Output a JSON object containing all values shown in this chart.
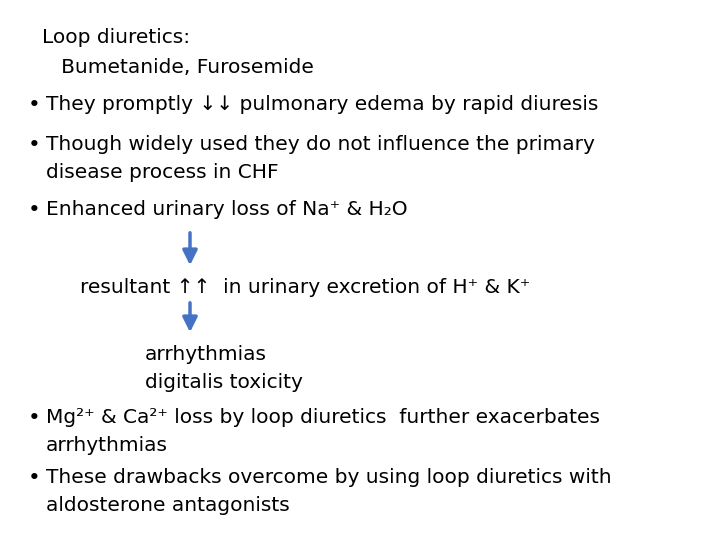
{
  "bg_color": "#ffffff",
  "text_color": "#000000",
  "arrow_color": "#4472C4",
  "title_line1": "Loop diuretics:",
  "title_line2": "   Bumetanide, Furosemide",
  "bullet1": "They promptly ↓↓ pulmonary edema by rapid diuresis",
  "bullet2_line1": "Though widely used they do not influence the primary",
  "bullet2_line2": "disease process in CHF",
  "bullet3": "Enhanced urinary loss of Na⁺ & H₂O",
  "resultant": "resultant ↑↑  in urinary excretion of H⁺ & K⁺",
  "arrhythmias": "arrhythmias",
  "digitalis": "digitalis toxicity",
  "bullet4_line1": "Mg²⁺ & Ca²⁺ loss by loop diuretics  further exacerbates",
  "bullet4_line2": "arrhythmias",
  "bullet5_line1": "These drawbacks overcome by using loop diuretics with",
  "bullet5_line2": "aldosterone antagonists",
  "fontsize": 14.5
}
